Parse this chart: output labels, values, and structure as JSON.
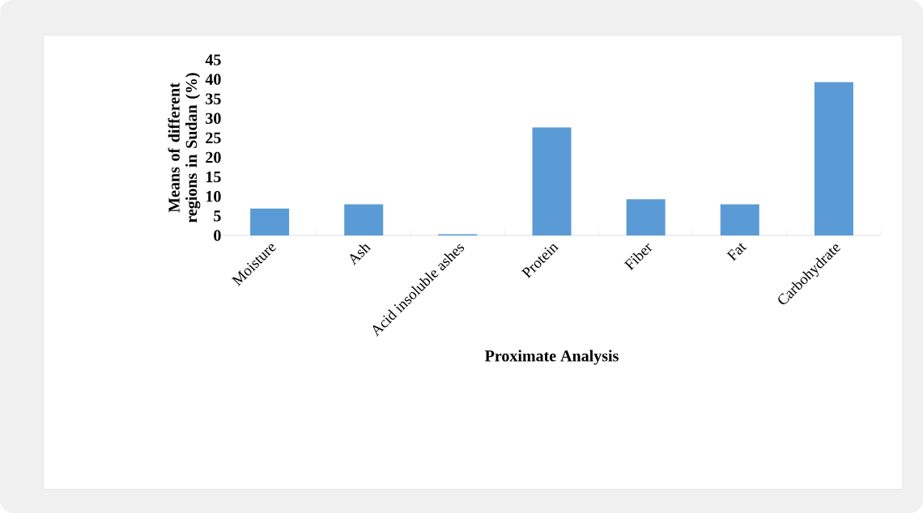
{
  "chart_data": {
    "type": "bar",
    "categories": [
      "Moisture",
      "Ash",
      "Acid insoluble ashes",
      "Protein",
      "Fiber",
      "Fat",
      "Carbohydrate"
    ],
    "values": [
      6.9,
      8.0,
      0.3,
      27.7,
      9.3,
      8.0,
      39.3
    ],
    "color": "#5b9bd5",
    "ylim": [
      0,
      45
    ],
    "yticks": [
      0,
      5,
      10,
      15,
      20,
      25,
      30,
      35,
      40,
      45
    ],
    "xlabel": "Proximate Analysis",
    "ylabel": "Means of different regions in Sudan (%)"
  }
}
